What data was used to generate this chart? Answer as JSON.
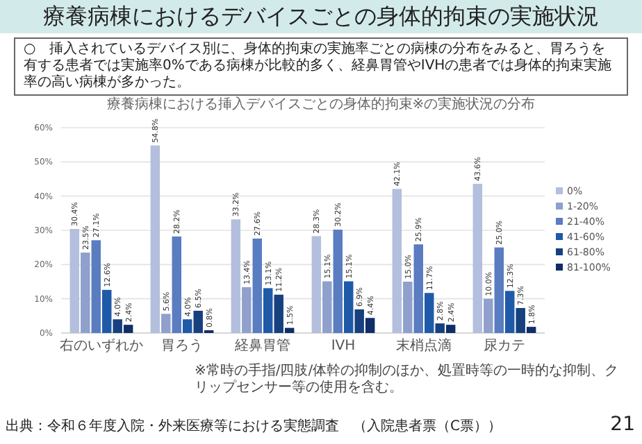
{
  "chart_data": {
    "type": "bar",
    "title": "療養病棟におけるデバイスごとの身体的拘束の実施状況",
    "subtitle": "療養病棟における挿入デバイスごとの身体的拘束※の実施状況の分布",
    "annotations": [
      "○　挿入されているデバイス別に、身体的拘束の実施率ごとの病棟の分布をみると、胃ろうを有する患者では実施率0%である病棟が比較的多く、経鼻胃管やIVHの患者では身体的拘束実施率の高い病棟が多かった。",
      "※常時の手指/四肢/体幹の抑制のほか、処置時等の一時的な抑制、クリップセンサー等の使用を含む。",
      "出典：令和６年度入院・外来医療等における実態調査　（入院患者票（C票））",
      "21"
    ],
    "categories": [
      "右のいずれか",
      "胃ろう",
      "経鼻胃管",
      "IVH",
      "末梢点滴",
      "尿カテ"
    ],
    "series": [
      {
        "name": "0%",
        "color": "#b4bedd",
        "values": [
          30.4,
          54.8,
          33.2,
          28.3,
          42.1,
          43.6
        ],
        "value_labels": [
          "30.4%",
          "54.8%",
          "33.2%",
          "28.3%",
          "42.1%",
          "43.6%"
        ]
      },
      {
        "name": "1-20%",
        "color": "#8fa0cc",
        "values": [
          23.5,
          5.6,
          13.4,
          15.1,
          15.0,
          10.0
        ],
        "value_labels": [
          "23.5%",
          "5.6%",
          "13.4%",
          "15.1%",
          "15.0%",
          "10.0%"
        ]
      },
      {
        "name": "21-40%",
        "color": "#5a7cc0",
        "values": [
          27.1,
          28.2,
          27.6,
          30.2,
          25.9,
          25.0
        ],
        "value_labels": [
          "27.1%",
          "28.2%",
          "27.6%",
          "30.2%",
          "25.9%",
          "25.0%"
        ]
      },
      {
        "name": "41-60%",
        "color": "#1f5aa8",
        "values": [
          12.6,
          4.0,
          13.1,
          15.1,
          11.7,
          12.3
        ],
        "value_labels": [
          "12.6%",
          "4.0%",
          "13.1%",
          "15.1%",
          "11.7%",
          "12.3%"
        ]
      },
      {
        "name": "61-80%",
        "color": "#17407e",
        "values": [
          4.0,
          6.5,
          11.2,
          6.9,
          2.8,
          7.3
        ],
        "value_labels": [
          "4.0%",
          "6.5%",
          "11.2%",
          "6.9%",
          "2.8%",
          "7.3%"
        ]
      },
      {
        "name": "81-100%",
        "color": "#0f2d66",
        "values": [
          2.4,
          0.8,
          1.5,
          4.4,
          2.4,
          1.8
        ],
        "value_labels": [
          "2.4%",
          "0.8%",
          "1.5%",
          "4.4%",
          "2.4%",
          "1.8%"
        ]
      }
    ],
    "ylim": [
      0,
      60
    ],
    "yticks": [
      {
        "value": 0,
        "label": "0%"
      },
      {
        "value": 10,
        "label": "10%"
      },
      {
        "value": 20,
        "label": "20%"
      },
      {
        "value": 30,
        "label": "30%"
      },
      {
        "value": 40,
        "label": "40%"
      },
      {
        "value": 50,
        "label": "50%"
      },
      {
        "value": 60,
        "label": "60%"
      }
    ],
    "grid": "y",
    "legend": "right"
  }
}
